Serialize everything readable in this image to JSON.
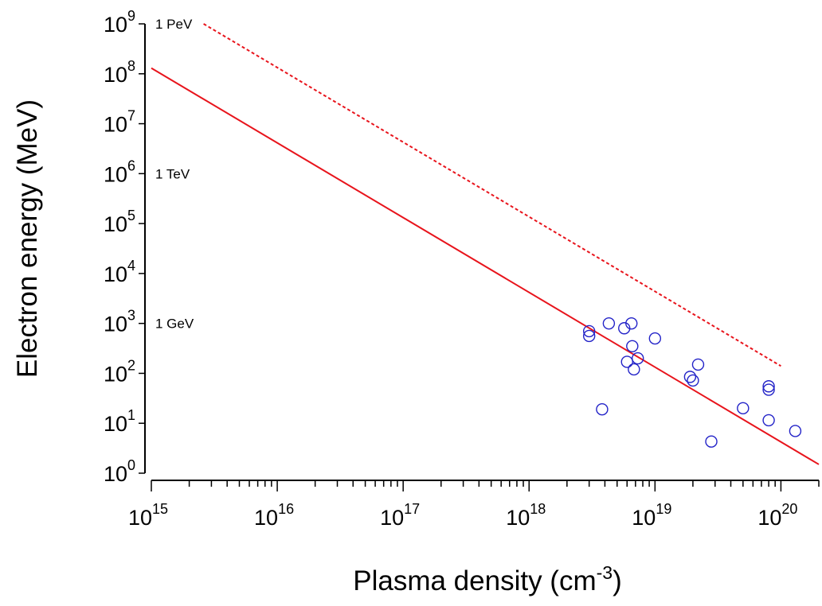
{
  "chart_data": {
    "type": "scatter",
    "title": "",
    "xlabel": "Plasma density (cm",
    "xlabel_superscript": "-3",
    "xlabel_suffix": ")",
    "ylabel": "Electron energy (MeV)",
    "xscale": "log",
    "yscale": "log",
    "xlim": [
      1000000000000000.0,
      2e+20
    ],
    "ylim": [
      1,
      1000000000.0
    ],
    "x_ticks": [
      {
        "base": "10",
        "exp": "15",
        "value": 1000000000000000.0
      },
      {
        "base": "10",
        "exp": "16",
        "value": 1e+16
      },
      {
        "base": "10",
        "exp": "17",
        "value": 1e+17
      },
      {
        "base": "10",
        "exp": "18",
        "value": 1e+18
      },
      {
        "base": "10",
        "exp": "19",
        "value": 1e+19
      },
      {
        "base": "10",
        "exp": "20",
        "value": 1e+20
      }
    ],
    "y_ticks": [
      {
        "base": "10",
        "exp": "0",
        "value": 1
      },
      {
        "base": "10",
        "exp": "1",
        "value": 10
      },
      {
        "base": "10",
        "exp": "2",
        "value": 100
      },
      {
        "base": "10",
        "exp": "3",
        "value": 1000
      },
      {
        "base": "10",
        "exp": "4",
        "value": 10000
      },
      {
        "base": "10",
        "exp": "5",
        "value": 100000
      },
      {
        "base": "10",
        "exp": "6",
        "value": 1000000
      },
      {
        "base": "10",
        "exp": "7",
        "value": 10000000
      },
      {
        "base": "10",
        "exp": "8",
        "value": 100000000
      },
      {
        "base": "10",
        "exp": "9",
        "value": 1000000000
      }
    ],
    "annotations": [
      {
        "text": "1 PeV",
        "y": 1000000000.0
      },
      {
        "text": "1 TeV",
        "y": 1000000.0
      },
      {
        "text": "1 GeV",
        "y": 1000.0
      }
    ],
    "series": [
      {
        "type": "line",
        "style": "solid",
        "color": "#e8141c",
        "points": [
          [
            1000000000000000.0,
            130000000.0
          ],
          [
            2e+20,
            1.5
          ]
        ]
      },
      {
        "type": "line",
        "style": "dotted",
        "color": "#e8141c",
        "points": [
          [
            2600000000000000.0,
            1000000000.0
          ],
          [
            1e+20,
            140
          ]
        ]
      },
      {
        "type": "scatter",
        "marker": "open-circle",
        "color": "#2323c8",
        "points": [
          [
            3e+18,
            700
          ],
          [
            3e+18,
            560
          ],
          [
            3.8e+18,
            19
          ],
          [
            4.3e+18,
            1000
          ],
          [
            5.7e+18,
            800
          ],
          [
            6.5e+18,
            1000
          ],
          [
            6.6e+18,
            350
          ],
          [
            6e+18,
            170
          ],
          [
            6.8e+18,
            120
          ],
          [
            7.3e+18,
            200
          ],
          [
            1e+19,
            500
          ],
          [
            1.9e+19,
            85
          ],
          [
            2e+19,
            72
          ],
          [
            2.2e+19,
            150
          ],
          [
            2.8e+19,
            4.3
          ],
          [
            5e+19,
            20
          ],
          [
            8e+19,
            55
          ],
          [
            8e+19,
            47
          ],
          [
            8e+19,
            11.5
          ],
          [
            1.3e+20,
            7
          ]
        ]
      }
    ]
  }
}
